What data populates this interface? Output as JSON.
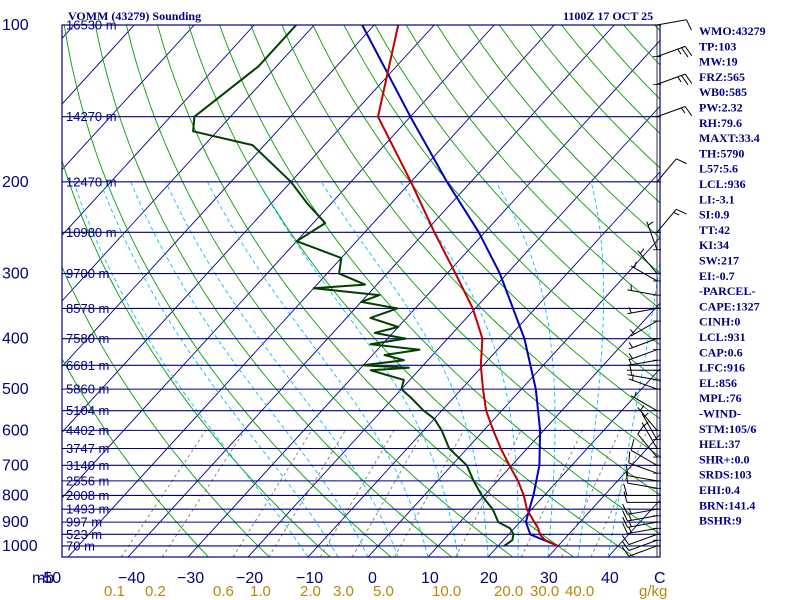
{
  "title": {
    "station": "VOMM (43279) Sounding",
    "time": "1100Z 17 OCT 25"
  },
  "chart_data": {
    "type": "skew-t",
    "pressure_levels": [
      {
        "p": 100,
        "label": "100",
        "height": "16530 m"
      },
      {
        "p": 150,
        "label": "",
        "height": "14270 m"
      },
      {
        "p": 200,
        "label": "200",
        "height": "12470 m"
      },
      {
        "p": 250,
        "label": "",
        "height": "10980 m"
      },
      {
        "p": 300,
        "label": "300",
        "height": "9700 m"
      },
      {
        "p": 350,
        "label": "",
        "height": "8578 m"
      },
      {
        "p": 400,
        "label": "400",
        "height": "7580 m"
      },
      {
        "p": 450,
        "label": "",
        "height": "6681 m"
      },
      {
        "p": 500,
        "label": "500",
        "height": "5860 m"
      },
      {
        "p": 550,
        "label": "",
        "height": "5104 m"
      },
      {
        "p": 600,
        "label": "600",
        "height": "4402 m"
      },
      {
        "p": 650,
        "label": "",
        "height": "3747 m"
      },
      {
        "p": 700,
        "label": "700",
        "height": "3140 m"
      },
      {
        "p": 750,
        "label": "",
        "height": "2556 m"
      },
      {
        "p": 800,
        "label": "800",
        "height": "2008 m"
      },
      {
        "p": 850,
        "label": "",
        "height": "1493 m"
      },
      {
        "p": 900,
        "label": "900",
        "height": "997 m"
      },
      {
        "p": 950,
        "label": "",
        "height": "523 m"
      },
      {
        "p": 1000,
        "label": "1000",
        "height": "70 m"
      }
    ],
    "pressure_unit": "mb",
    "temperature_ticks": [
      "-50",
      "−40",
      "−30",
      "−20",
      "−10",
      "0",
      "10",
      "20",
      "30",
      "40",
      "C"
    ],
    "mixing_ratio_ticks": [
      "0.1",
      "0.2",
      "0.6",
      "1.0",
      "2.0",
      "3.0",
      "5.0",
      "10.0",
      "20.0",
      "30.0",
      "40.0",
      "g/kg"
    ],
    "temperature_profile": [
      [
        1000,
        30.0
      ],
      [
        975,
        27.0
      ],
      [
        950,
        25.2
      ],
      [
        925,
        24.0
      ],
      [
        900,
        22.4
      ],
      [
        850,
        19.2
      ],
      [
        800,
        16.6
      ],
      [
        750,
        13.4
      ],
      [
        700,
        9.6
      ],
      [
        650,
        5.6
      ],
      [
        600,
        1.6
      ],
      [
        550,
        -2.6
      ],
      [
        500,
        -6.4
      ],
      [
        450,
        -10.4
      ],
      [
        400,
        -14.2
      ],
      [
        350,
        -20.4
      ],
      [
        300,
        -28.6
      ],
      [
        250,
        -38.4
      ],
      [
        200,
        -50.0
      ],
      [
        150,
        -65.4
      ],
      [
        100,
        -76.0
      ]
    ],
    "dewpoint_profile": [
      [
        1000,
        21.0
      ],
      [
        975,
        21.5
      ],
      [
        950,
        20.8
      ],
      [
        925,
        19.3
      ],
      [
        900,
        16.4
      ],
      [
        850,
        13.5
      ],
      [
        800,
        9.6
      ],
      [
        750,
        6.0
      ],
      [
        700,
        2.5
      ],
      [
        650,
        -3.0
      ],
      [
        600,
        -7.0
      ],
      [
        570,
        -10.0
      ],
      [
        550,
        -13.0
      ],
      [
        520,
        -17.0
      ],
      [
        500,
        -20.0
      ],
      [
        480,
        -21.0
      ],
      [
        460,
        -28.0
      ],
      [
        455,
        -22.0
      ],
      [
        450,
        -30.0
      ],
      [
        440,
        -24.0
      ],
      [
        430,
        -28.0
      ],
      [
        420,
        -23.0
      ],
      [
        410,
        -32.0
      ],
      [
        400,
        -27.0
      ],
      [
        390,
        -33.0
      ],
      [
        380,
        -30.0
      ],
      [
        365,
        -36.0
      ],
      [
        350,
        -33.0
      ],
      [
        340,
        -40.0
      ],
      [
        330,
        -38.0
      ],
      [
        320,
        -50.0
      ],
      [
        315,
        -42.0
      ],
      [
        300,
        -48.0
      ],
      [
        280,
        -50.0
      ],
      [
        260,
        -60.0
      ],
      [
        240,
        -58.0
      ],
      [
        220,
        -64.0
      ],
      [
        200,
        -70.0
      ],
      [
        170,
        -82.0
      ],
      [
        160,
        -94.0
      ],
      [
        150,
        -96.0
      ],
      [
        120,
        -93.0
      ],
      [
        100,
        -93.0
      ]
    ],
    "parcel_profile": [
      [
        1000,
        30.0
      ],
      [
        950,
        23.6
      ],
      [
        900,
        21.0
      ],
      [
        850,
        19.6
      ],
      [
        800,
        18.2
      ],
      [
        700,
        14.6
      ],
      [
        600,
        9.4
      ],
      [
        500,
        2.4
      ],
      [
        400,
        -7.2
      ],
      [
        300,
        -21.2
      ],
      [
        250,
        -31.0
      ],
      [
        200,
        -44.0
      ],
      [
        150,
        -60.0
      ],
      [
        100,
        -82.0
      ]
    ],
    "wind_barbs": [
      {
        "p": 1000,
        "dir": 250,
        "spd": 10
      },
      {
        "p": 975,
        "dir": 250,
        "spd": 10
      },
      {
        "p": 950,
        "dir": 250,
        "spd": 10
      },
      {
        "p": 925,
        "dir": 260,
        "spd": 15
      },
      {
        "p": 900,
        "dir": 260,
        "spd": 15
      },
      {
        "p": 875,
        "dir": 260,
        "spd": 15
      },
      {
        "p": 850,
        "dir": 260,
        "spd": 15
      },
      {
        "p": 825,
        "dir": 270,
        "spd": 10
      },
      {
        "p": 800,
        "dir": 270,
        "spd": 10
      },
      {
        "p": 775,
        "dir": 280,
        "spd": 10
      },
      {
        "p": 750,
        "dir": 280,
        "spd": 10
      },
      {
        "p": 725,
        "dir": 290,
        "spd": 10
      },
      {
        "p": 700,
        "dir": 300,
        "spd": 10
      },
      {
        "p": 675,
        "dir": 320,
        "spd": 10
      },
      {
        "p": 650,
        "dir": 330,
        "spd": 5
      },
      {
        "p": 625,
        "dir": 330,
        "spd": 5
      },
      {
        "p": 600,
        "dir": 320,
        "spd": 5
      },
      {
        "p": 550,
        "dir": 300,
        "spd": 5
      },
      {
        "p": 500,
        "dir": 290,
        "spd": 5
      },
      {
        "p": 480,
        "dir": 280,
        "spd": 5
      },
      {
        "p": 460,
        "dir": 270,
        "spd": 5
      },
      {
        "p": 440,
        "dir": 260,
        "spd": 5
      },
      {
        "p": 420,
        "dir": 250,
        "spd": 5
      },
      {
        "p": 400,
        "dir": 250,
        "spd": 5
      },
      {
        "p": 370,
        "dir": 240,
        "spd": 5
      },
      {
        "p": 350,
        "dir": 260,
        "spd": 5
      },
      {
        "p": 330,
        "dir": 280,
        "spd": 5
      },
      {
        "p": 310,
        "dir": 300,
        "spd": 5
      },
      {
        "p": 300,
        "dir": 320,
        "spd": 5
      },
      {
        "p": 270,
        "dir": 340,
        "spd": 5
      },
      {
        "p": 250,
        "dir": 40,
        "spd": 15
      },
      {
        "p": 200,
        "dir": 40,
        "spd": 10
      },
      {
        "p": 150,
        "dir": 70,
        "spd": 15
      },
      {
        "p": 130,
        "dir": 70,
        "spd": 25
      },
      {
        "p": 115,
        "dir": 70,
        "spd": 25
      },
      {
        "p": 100,
        "dir": 80,
        "spd": 10
      }
    ],
    "indices": [
      "WMO:43279",
      "TP:103",
      "MW:19",
      "FRZ:565",
      "WB0:585",
      "PW:2.32",
      "RH:79.6",
      "MAXT:33.4",
      "TH:5790",
      "L57:5.6",
      "LCL:936",
      "LI:-3.1",
      "SI:0.9",
      "TT:42",
      "KI:34",
      "SW:217",
      "EI:-0.7",
      "-PARCEL-",
      "CAPE:1327",
      "CINH:0",
      "LCL:931",
      "CAP:0.6",
      "LFC:916",
      "EL:856",
      "MPL:76",
      "-WIND-",
      "STM:105/6",
      "HEL:37",
      "SHR+:0.0",
      "SRDS:103",
      "EHI:0.4",
      "BRN:141.4",
      "BSHR:9"
    ]
  },
  "colors": {
    "frame": "#000080",
    "isotherm": "#000080",
    "dry_adiabat": "#00a000",
    "moist_adiabat": "#00bfff",
    "mixing_ratio": "#808060",
    "temperature": "#c00000",
    "dewpoint": "#004000",
    "parcel": "#0000c0",
    "mixing_ratio_labels": "#b8860b"
  }
}
